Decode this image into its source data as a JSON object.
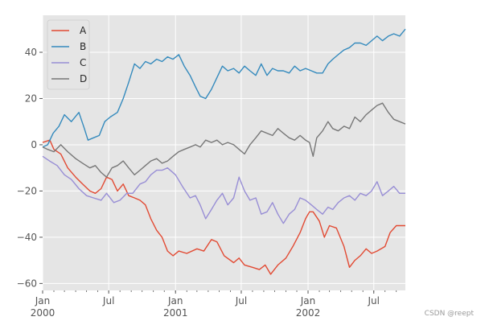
{
  "chart_data": {
    "type": "line",
    "title": "",
    "xlabel": "",
    "ylabel": "",
    "x_axis": {
      "range": [
        "2000-01-01",
        "2002-09-26"
      ],
      "major_ticks": [
        {
          "date": "2000-01-01",
          "label": "Jan",
          "sublabel": "2000"
        },
        {
          "date": "2000-07-01",
          "label": "Jul",
          "sublabel": ""
        },
        {
          "date": "2001-01-01",
          "label": "Jan",
          "sublabel": "2001"
        },
        {
          "date": "2001-07-01",
          "label": "Jul",
          "sublabel": ""
        },
        {
          "date": "2002-01-01",
          "label": "Jan",
          "sublabel": "2002"
        },
        {
          "date": "2002-07-01",
          "label": "Jul",
          "sublabel": ""
        }
      ],
      "minor_tick_interval": "month"
    },
    "y_axis": {
      "range": [
        -63,
        56
      ],
      "ticks": [
        -60,
        -40,
        -20,
        0,
        20,
        40
      ]
    },
    "grid": true,
    "legend": {
      "position": "top-left"
    },
    "series": [
      {
        "name": "A",
        "color": "#E24A33",
        "points": [
          [
            "2000-01-01",
            1
          ],
          [
            "2000-01-21",
            2
          ],
          [
            "2000-02-01",
            -2
          ],
          [
            "2000-02-20",
            -4
          ],
          [
            "2000-03-10",
            -10
          ],
          [
            "2000-04-01",
            -14
          ],
          [
            "2000-04-20",
            -17
          ],
          [
            "2000-05-10",
            -20
          ],
          [
            "2000-05-25",
            -21
          ],
          [
            "2000-06-10",
            -19
          ],
          [
            "2000-06-25",
            -14
          ],
          [
            "2000-07-10",
            -15
          ],
          [
            "2000-07-25",
            -20
          ],
          [
            "2000-08-10",
            -17
          ],
          [
            "2000-08-25",
            -22
          ],
          [
            "2000-09-10",
            -23
          ],
          [
            "2000-09-25",
            -24
          ],
          [
            "2000-10-10",
            -26
          ],
          [
            "2000-10-25",
            -32
          ],
          [
            "2000-11-10",
            -37
          ],
          [
            "2000-11-25",
            -40
          ],
          [
            "2000-12-10",
            -46
          ],
          [
            "2000-12-25",
            -48
          ],
          [
            "2001-01-10",
            -46
          ],
          [
            "2001-02-01",
            -47
          ],
          [
            "2001-03-01",
            -45
          ],
          [
            "2001-03-20",
            -46
          ],
          [
            "2001-04-10",
            -41
          ],
          [
            "2001-04-25",
            -42
          ],
          [
            "2001-05-15",
            -48
          ],
          [
            "2001-06-10",
            -51
          ],
          [
            "2001-06-25",
            -49
          ],
          [
            "2001-07-10",
            -52
          ],
          [
            "2001-08-01",
            -53
          ],
          [
            "2001-08-20",
            -54
          ],
          [
            "2001-09-05",
            -52
          ],
          [
            "2001-09-20",
            -56
          ],
          [
            "2001-10-10",
            -52
          ],
          [
            "2001-11-01",
            -49
          ],
          [
            "2001-11-20",
            -44
          ],
          [
            "2001-12-10",
            -38
          ],
          [
            "2001-12-25",
            -32
          ],
          [
            "2002-01-05",
            -29
          ],
          [
            "2002-01-15",
            -29
          ],
          [
            "2002-02-01",
            -33
          ],
          [
            "2002-02-15",
            -40
          ],
          [
            "2002-03-01",
            -35
          ],
          [
            "2002-03-20",
            -36
          ],
          [
            "2002-04-10",
            -44
          ],
          [
            "2002-04-25",
            -53
          ],
          [
            "2002-05-10",
            -50
          ],
          [
            "2002-05-25",
            -48
          ],
          [
            "2002-06-10",
            -45
          ],
          [
            "2002-06-25",
            -47
          ],
          [
            "2002-07-10",
            -46
          ],
          [
            "2002-08-01",
            -44
          ],
          [
            "2002-08-15",
            -38
          ],
          [
            "2002-09-01",
            -35
          ],
          [
            "2002-09-26",
            -35
          ]
        ]
      },
      {
        "name": "B",
        "color": "#348ABD",
        "points": [
          [
            "2000-01-01",
            -1
          ],
          [
            "2000-01-15",
            0
          ],
          [
            "2000-01-30",
            5
          ],
          [
            "2000-02-15",
            8
          ],
          [
            "2000-03-01",
            13
          ],
          [
            "2000-03-20",
            10
          ],
          [
            "2000-04-10",
            14
          ],
          [
            "2000-04-25",
            7
          ],
          [
            "2000-05-05",
            2
          ],
          [
            "2000-05-20",
            3
          ],
          [
            "2000-06-05",
            4
          ],
          [
            "2000-06-20",
            10
          ],
          [
            "2000-07-05",
            12
          ],
          [
            "2000-07-25",
            14
          ],
          [
            "2000-08-10",
            20
          ],
          [
            "2000-08-25",
            27
          ],
          [
            "2000-09-10",
            35
          ],
          [
            "2000-09-25",
            33
          ],
          [
            "2000-10-10",
            36
          ],
          [
            "2000-10-25",
            35
          ],
          [
            "2000-11-10",
            37
          ],
          [
            "2000-11-25",
            36
          ],
          [
            "2000-12-10",
            38
          ],
          [
            "2000-12-25",
            37
          ],
          [
            "2001-01-10",
            39
          ],
          [
            "2001-01-25",
            34
          ],
          [
            "2001-02-10",
            30
          ],
          [
            "2001-02-25",
            25
          ],
          [
            "2001-03-10",
            21
          ],
          [
            "2001-03-25",
            20
          ],
          [
            "2001-04-10",
            24
          ],
          [
            "2001-04-25",
            29
          ],
          [
            "2001-05-10",
            34
          ],
          [
            "2001-05-25",
            32
          ],
          [
            "2001-06-10",
            33
          ],
          [
            "2001-06-25",
            31
          ],
          [
            "2001-07-10",
            34
          ],
          [
            "2001-07-25",
            32
          ],
          [
            "2001-08-10",
            30
          ],
          [
            "2001-08-25",
            35
          ],
          [
            "2001-09-10",
            30
          ],
          [
            "2001-09-25",
            33
          ],
          [
            "2001-10-10",
            32
          ],
          [
            "2001-10-25",
            32
          ],
          [
            "2001-11-10",
            31
          ],
          [
            "2001-11-25",
            34
          ],
          [
            "2001-12-10",
            32
          ],
          [
            "2001-12-25",
            33
          ],
          [
            "2002-01-10",
            32
          ],
          [
            "2002-01-25",
            31
          ],
          [
            "2002-02-10",
            31
          ],
          [
            "2002-02-25",
            35
          ],
          [
            "2002-03-10",
            37
          ],
          [
            "2002-03-25",
            39
          ],
          [
            "2002-04-10",
            41
          ],
          [
            "2002-04-25",
            42
          ],
          [
            "2002-05-10",
            44
          ],
          [
            "2002-05-25",
            44
          ],
          [
            "2002-06-10",
            43
          ],
          [
            "2002-06-25",
            45
          ],
          [
            "2002-07-10",
            47
          ],
          [
            "2002-07-25",
            45
          ],
          [
            "2002-08-10",
            47
          ],
          [
            "2002-08-25",
            48
          ],
          [
            "2002-09-10",
            47
          ],
          [
            "2002-09-26",
            50
          ]
        ]
      },
      {
        "name": "C",
        "color": "#988ED5",
        "points": [
          [
            "2000-01-01",
            -5
          ],
          [
            "2000-01-20",
            -7
          ],
          [
            "2000-02-10",
            -9
          ],
          [
            "2000-03-01",
            -13
          ],
          [
            "2000-03-20",
            -15
          ],
          [
            "2000-04-10",
            -19
          ],
          [
            "2000-05-01",
            -22
          ],
          [
            "2000-05-20",
            -23
          ],
          [
            "2000-06-10",
            -24
          ],
          [
            "2000-06-25",
            -21
          ],
          [
            "2000-07-15",
            -25
          ],
          [
            "2000-08-01",
            -24
          ],
          [
            "2000-08-20",
            -21
          ],
          [
            "2000-09-05",
            -21
          ],
          [
            "2000-09-25",
            -17
          ],
          [
            "2000-10-10",
            -16
          ],
          [
            "2000-10-25",
            -13
          ],
          [
            "2000-11-10",
            -11
          ],
          [
            "2000-11-25",
            -11
          ],
          [
            "2000-12-10",
            -10
          ],
          [
            "2001-01-01",
            -13
          ],
          [
            "2001-01-20",
            -18
          ],
          [
            "2001-02-10",
            -23
          ],
          [
            "2001-02-25",
            -22
          ],
          [
            "2001-03-10",
            -26
          ],
          [
            "2001-03-25",
            -32
          ],
          [
            "2001-04-10",
            -28
          ],
          [
            "2001-04-25",
            -24
          ],
          [
            "2001-05-10",
            -21
          ],
          [
            "2001-05-25",
            -26
          ],
          [
            "2001-06-10",
            -23
          ],
          [
            "2001-06-25",
            -14
          ],
          [
            "2001-07-10",
            -20
          ],
          [
            "2001-07-25",
            -24
          ],
          [
            "2001-08-10",
            -23
          ],
          [
            "2001-08-25",
            -30
          ],
          [
            "2001-09-10",
            -29
          ],
          [
            "2001-09-25",
            -25
          ],
          [
            "2001-10-10",
            -30
          ],
          [
            "2001-10-25",
            -34
          ],
          [
            "2001-11-10",
            -30
          ],
          [
            "2001-11-25",
            -28
          ],
          [
            "2001-12-10",
            -23
          ],
          [
            "2001-12-25",
            -24
          ],
          [
            "2002-01-10",
            -26
          ],
          [
            "2002-01-25",
            -28
          ],
          [
            "2002-02-10",
            -30
          ],
          [
            "2002-02-25",
            -27
          ],
          [
            "2002-03-10",
            -28
          ],
          [
            "2002-03-25",
            -25
          ],
          [
            "2002-04-10",
            -23
          ],
          [
            "2002-04-25",
            -22
          ],
          [
            "2002-05-10",
            -24
          ],
          [
            "2002-05-25",
            -21
          ],
          [
            "2002-06-10",
            -22
          ],
          [
            "2002-06-25",
            -20
          ],
          [
            "2002-07-10",
            -16
          ],
          [
            "2002-07-25",
            -22
          ],
          [
            "2002-08-10",
            -20
          ],
          [
            "2002-08-25",
            -18
          ],
          [
            "2002-09-10",
            -21
          ],
          [
            "2002-09-26",
            -21
          ]
        ]
      },
      {
        "name": "D",
        "color": "#777777",
        "points": [
          [
            "2000-01-01",
            -1
          ],
          [
            "2000-01-15",
            -2
          ],
          [
            "2000-02-01",
            -3
          ],
          [
            "2000-02-20",
            0
          ],
          [
            "2000-03-10",
            -3
          ],
          [
            "2000-04-01",
            -6
          ],
          [
            "2000-04-20",
            -8
          ],
          [
            "2000-05-10",
            -10
          ],
          [
            "2000-05-25",
            -9
          ],
          [
            "2000-06-10",
            -12
          ],
          [
            "2000-06-25",
            -14
          ],
          [
            "2000-07-10",
            -10
          ],
          [
            "2000-07-25",
            -9
          ],
          [
            "2000-08-10",
            -7
          ],
          [
            "2000-08-25",
            -10
          ],
          [
            "2000-09-10",
            -13
          ],
          [
            "2000-09-25",
            -11
          ],
          [
            "2000-10-10",
            -9
          ],
          [
            "2000-10-25",
            -7
          ],
          [
            "2000-11-10",
            -6
          ],
          [
            "2000-11-25",
            -8
          ],
          [
            "2000-12-10",
            -7
          ],
          [
            "2000-12-25",
            -5
          ],
          [
            "2001-01-10",
            -3
          ],
          [
            "2001-01-25",
            -2
          ],
          [
            "2001-02-10",
            -1
          ],
          [
            "2001-02-25",
            0
          ],
          [
            "2001-03-10",
            -1
          ],
          [
            "2001-03-25",
            2
          ],
          [
            "2001-04-10",
            1
          ],
          [
            "2001-04-25",
            2
          ],
          [
            "2001-05-10",
            0
          ],
          [
            "2001-05-25",
            1
          ],
          [
            "2001-06-10",
            0
          ],
          [
            "2001-06-25",
            -2
          ],
          [
            "2001-07-10",
            -4
          ],
          [
            "2001-07-25",
            0
          ],
          [
            "2001-08-10",
            3
          ],
          [
            "2001-08-25",
            6
          ],
          [
            "2001-09-10",
            5
          ],
          [
            "2001-09-25",
            4
          ],
          [
            "2001-10-10",
            7
          ],
          [
            "2001-10-25",
            5
          ],
          [
            "2001-11-10",
            3
          ],
          [
            "2001-11-25",
            2
          ],
          [
            "2001-12-10",
            4
          ],
          [
            "2001-12-25",
            2
          ],
          [
            "2002-01-05",
            1
          ],
          [
            "2002-01-15",
            -5
          ],
          [
            "2002-01-25",
            3
          ],
          [
            "2002-02-10",
            6
          ],
          [
            "2002-02-25",
            10
          ],
          [
            "2002-03-10",
            7
          ],
          [
            "2002-03-25",
            6
          ],
          [
            "2002-04-10",
            8
          ],
          [
            "2002-04-25",
            7
          ],
          [
            "2002-05-10",
            12
          ],
          [
            "2002-05-25",
            10
          ],
          [
            "2002-06-10",
            13
          ],
          [
            "2002-06-25",
            15
          ],
          [
            "2002-07-10",
            17
          ],
          [
            "2002-07-25",
            18
          ],
          [
            "2002-08-10",
            14
          ],
          [
            "2002-08-25",
            11
          ],
          [
            "2002-09-10",
            10
          ],
          [
            "2002-09-26",
            9
          ]
        ]
      }
    ]
  },
  "watermark": "CSDN @reept"
}
